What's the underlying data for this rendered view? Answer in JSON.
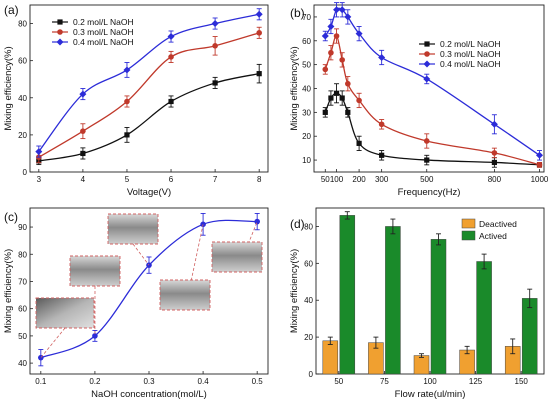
{
  "chart_data": [
    {
      "panel_label": "(a)",
      "type": "line",
      "xlabel": "Voltage(V)",
      "ylabel": "Mixing efficiency(%)",
      "xlim": [
        2.8,
        8.2
      ],
      "ylim": [
        0,
        90
      ],
      "xticks": [
        3,
        4,
        5,
        6,
        7,
        8
      ],
      "yticks": [
        0,
        20,
        40,
        60,
        80
      ],
      "legend_position": "top-left",
      "x": [
        3,
        4,
        5,
        6,
        7,
        8
      ],
      "series": [
        {
          "name": "0.2 mol/L NaOH",
          "color": "#111111",
          "marker": "square",
          "values": [
            6,
            10,
            20,
            38,
            48,
            53
          ],
          "err": [
            2,
            3,
            4,
            3,
            3,
            5
          ]
        },
        {
          "name": "0.3 mol/L NaOH",
          "color": "#c0392b",
          "marker": "circle",
          "values": [
            8,
            22,
            38,
            62,
            68,
            75
          ],
          "err": [
            3,
            4,
            3,
            3,
            5,
            3
          ]
        },
        {
          "name": "0.4 mol/L NaOH",
          "color": "#2c2cd8",
          "marker": "diamond",
          "values": [
            11,
            42,
            55,
            73,
            80,
            85
          ],
          "err": [
            3,
            3,
            4,
            3,
            3,
            3
          ]
        }
      ]
    },
    {
      "panel_label": "(b)",
      "type": "line",
      "xlabel": "Frequency(Hz)",
      "ylabel": "Mixing efficiency(%)",
      "xlim": [
        0,
        1020
      ],
      "ylim": [
        5,
        75
      ],
      "xticks": [
        50,
        100,
        200,
        300,
        500,
        800,
        1000
      ],
      "yticks": [
        10,
        20,
        30,
        40,
        50,
        60,
        70
      ],
      "legend_position": "top-right",
      "series": [
        {
          "name": "0.2 mol/L NaOH",
          "color": "#111111",
          "marker": "square",
          "x": [
            50,
            75,
            100,
            125,
            150,
            200,
            300,
            500,
            800,
            1000
          ],
          "values": [
            30,
            36,
            38,
            36,
            30,
            17,
            12,
            10,
            9,
            8
          ],
          "err": [
            2,
            3,
            4,
            3,
            2,
            3,
            2,
            2,
            2,
            1
          ]
        },
        {
          "name": "0.3 mol/L NaOH",
          "color": "#c0392b",
          "marker": "circle",
          "x": [
            50,
            75,
            100,
            125,
            150,
            200,
            300,
            500,
            800,
            1000
          ],
          "values": [
            48,
            55,
            62,
            52,
            42,
            35,
            25,
            18,
            13,
            8
          ],
          "err": [
            2,
            3,
            3,
            3,
            3,
            3,
            2,
            3,
            2,
            1
          ]
        },
        {
          "name": "0.4 mol/L NaOH",
          "color": "#2c2cd8",
          "marker": "diamond",
          "x": [
            50,
            75,
            100,
            125,
            150,
            200,
            300,
            500,
            800,
            1000
          ],
          "values": [
            62,
            66,
            73,
            73,
            70,
            63,
            53,
            44,
            25,
            12
          ],
          "err": [
            2,
            3,
            3,
            3,
            3,
            3,
            3,
            2,
            4,
            2
          ]
        }
      ]
    },
    {
      "panel_label": "(c)",
      "type": "line",
      "xlabel": "NaOH concentration(mol/L)",
      "ylabel": "Mixing efficiency(%)",
      "xlim": [
        0.08,
        0.52
      ],
      "ylim": [
        36,
        97
      ],
      "xticks": [
        0.1,
        0.2,
        0.3,
        0.4,
        0.5
      ],
      "yticks": [
        40,
        50,
        60,
        70,
        80,
        90
      ],
      "x": [
        0.1,
        0.2,
        0.3,
        0.4,
        0.5
      ],
      "series": [
        {
          "color": "#2c2cd8",
          "marker": "circle",
          "values": [
            42,
            50,
            76,
            91,
            92
          ],
          "err": [
            3,
            2,
            3,
            4,
            3
          ]
        }
      ]
    },
    {
      "panel_label": "(d)",
      "type": "bar",
      "xlabel": "Flow rate(ul/min)",
      "ylabel": "Mixing efficiency(%)",
      "ylim": [
        0,
        90
      ],
      "yticks": [
        0,
        20,
        40,
        60,
        80
      ],
      "legend_position": "top-right",
      "categories": [
        "50",
        "75",
        "100",
        "125",
        "150"
      ],
      "series": [
        {
          "name": "Deactived",
          "color": "#f0a030",
          "values": [
            18,
            17,
            10,
            13,
            15
          ],
          "err": [
            2,
            3,
            1,
            2,
            4
          ]
        },
        {
          "name": "Actived",
          "color": "#1a8a2a",
          "values": [
            86,
            80,
            73,
            61,
            41
          ],
          "err": [
            2,
            4,
            3,
            4,
            5
          ]
        }
      ]
    }
  ]
}
